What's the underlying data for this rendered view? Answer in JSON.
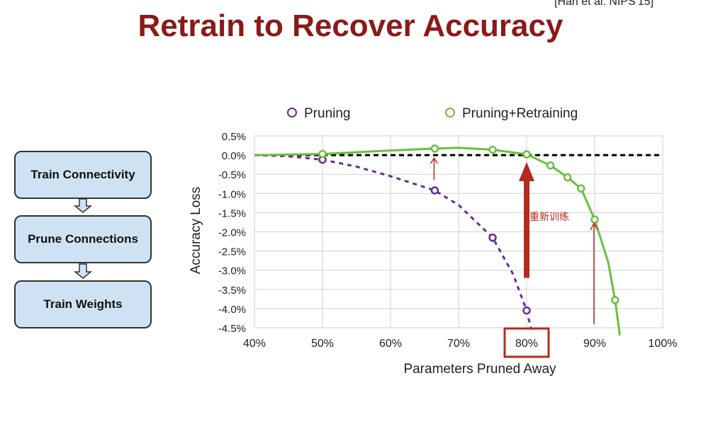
{
  "citation": "[Han et al. NIPS'15]",
  "title": "Retrain to Recover Accuracy",
  "flow": {
    "steps": [
      "Train Connectivity",
      "Prune Connections",
      "Train Weights"
    ]
  },
  "legend": {
    "pruning": "Pruning",
    "retraining": "Pruning+Retraining"
  },
  "annotation": "重新训练",
  "highlight": "80%",
  "colors": {
    "title": "#8b1a1a",
    "pruning": "#6a2c91",
    "retraining": "#6abf3f",
    "annotation": "#b52a1f",
    "box_fill": "#cfe2f3"
  },
  "chart_data": {
    "type": "line",
    "xlabel": "Parameters Pruned Away",
    "ylabel": "Accuracy Loss",
    "xlim": [
      40,
      100
    ],
    "ylim": [
      -4.5,
      0.5
    ],
    "xticks": [
      "40%",
      "50%",
      "60%",
      "70%",
      "80%",
      "90%",
      "100%"
    ],
    "yticks": [
      "0.5%",
      "0.0%",
      "-0.5%",
      "-1.0%",
      "-1.5%",
      "-2.0%",
      "-2.5%",
      "-3.0%",
      "-3.5%",
      "-4.0%",
      "-4.5%"
    ],
    "grid": true,
    "legend_position": "top",
    "series": [
      {
        "name": "Pruning",
        "style": "dashed",
        "x": [
          50,
          66.5,
          75,
          80
        ],
        "y": [
          -0.12,
          -0.92,
          -2.15,
          -4.05
        ],
        "curve_x": [
          40,
          45,
          50,
          55,
          60,
          66.5,
          70,
          75,
          78,
          80,
          80.7
        ],
        "curve_y": [
          0,
          -0.03,
          -0.12,
          -0.3,
          -0.55,
          -0.92,
          -1.3,
          -2.15,
          -3.1,
          -4.05,
          -4.55
        ]
      },
      {
        "name": "Pruning+Retraining",
        "style": "solid",
        "x": [
          50,
          66.5,
          75,
          80,
          83.5,
          86,
          88,
          90,
          93
        ],
        "y": [
          0.03,
          0.17,
          0.14,
          0.02,
          -0.27,
          -0.58,
          -0.87,
          -1.68,
          -3.78
        ],
        "curve_x": [
          40,
          50,
          60,
          66.5,
          70,
          75,
          80,
          83.5,
          86,
          88,
          90,
          92,
          93,
          93.7
        ],
        "curve_y": [
          0,
          0.03,
          0.12,
          0.17,
          0.19,
          0.14,
          0.02,
          -0.27,
          -0.58,
          -0.87,
          -1.68,
          -2.8,
          -3.78,
          -4.7
        ]
      }
    ],
    "reference_line": 0
  }
}
